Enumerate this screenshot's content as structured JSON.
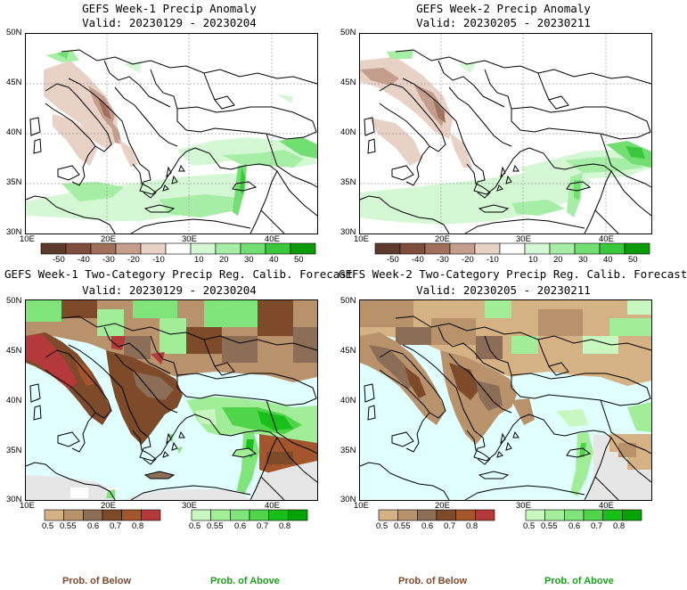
{
  "panels": [
    {
      "title": "GEFS Week-1 Precip Anomaly",
      "valid": "Valid: 20230129 - 20230204"
    },
    {
      "title": "GEFS Week-2 Precip Anomaly",
      "valid": "Valid: 20230205 - 20230211"
    },
    {
      "title": "GEFS Week-1 Two-Category Precip Reg. Calib. Forecast",
      "valid": "Valid: 20230129 - 20230204"
    },
    {
      "title": "GEFS Week-2 Two-Category Precip Reg. Calib. Forecast",
      "valid": "Valid: 20230205 - 20230211"
    }
  ],
  "lat_labels": [
    "50N",
    "45N",
    "40N",
    "35N",
    "30N"
  ],
  "lon_labels": [
    "10E",
    "20E",
    "30E",
    "40E"
  ],
  "anomaly_colorbar": {
    "ticks": [
      "-50",
      "-40",
      "-30",
      "-20",
      "-10",
      "10",
      "20",
      "30",
      "40",
      "50"
    ],
    "colors": [
      "#5e3a2c",
      "#7f4d3b",
      "#a0705c",
      "#c49e8c",
      "#e8d2c6",
      "#ffffff",
      "#d4f7d4",
      "#a6eea6",
      "#72df72",
      "#3cc83c",
      "#0a9a0a"
    ]
  },
  "below_colorbar": {
    "ticks": [
      "0.5",
      "0.55",
      "0.6",
      "0.7",
      "0.8"
    ],
    "colors": [
      "#d4b283",
      "#b8926a",
      "#8c6e57",
      "#7d4a2a",
      "#a3562c",
      "#b4393a"
    ]
  },
  "above_colorbar": {
    "ticks": [
      "0.5",
      "0.55",
      "0.6",
      "0.7",
      "0.8"
    ],
    "colors": [
      "#c8f7c0",
      "#a2ee98",
      "#7fe47a",
      "#4fd44a",
      "#19c019",
      "#06a306"
    ]
  },
  "legend": {
    "below": "Prob. of Below",
    "above": "Prob. of Above"
  },
  "colors": {
    "sea": "#e0ffff",
    "land_gray": "#e6e6e6",
    "border": "#000000"
  }
}
